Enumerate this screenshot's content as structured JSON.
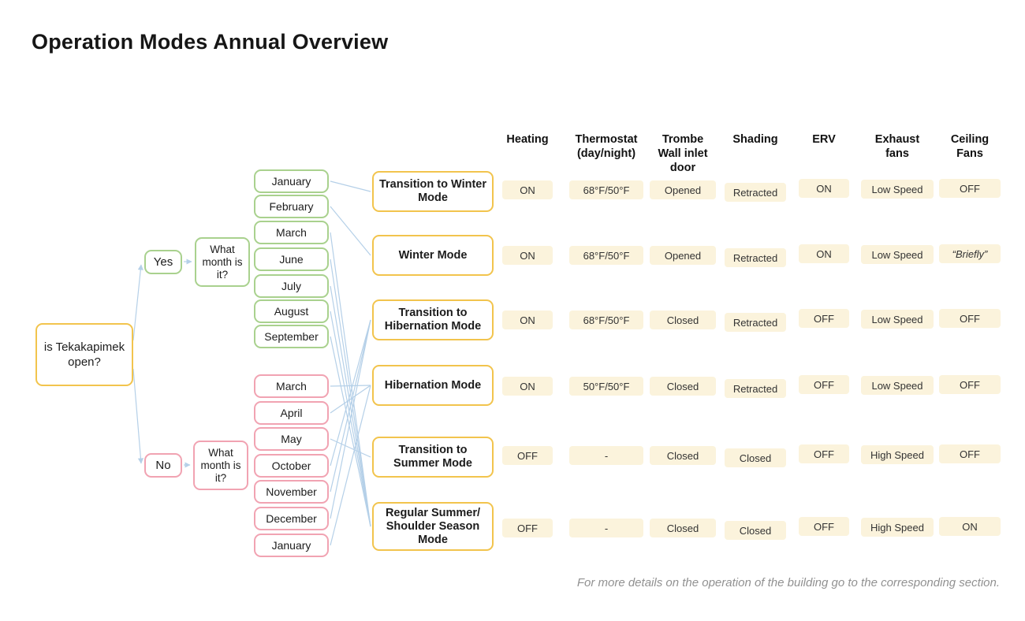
{
  "title": "Operation Modes Annual Overview",
  "footer_note": "For more details on the operation of the building go to the corresponding section.",
  "colors": {
    "mode_border": "#f2c44d",
    "open_border": "#a9d18e",
    "closed_border": "#f1a3b2",
    "cell_background": "#fbf3dc",
    "connector_blue": "#b5d0e8",
    "note_gray": "#919191"
  },
  "decision_tree": {
    "root_question": "is Tekakapimek open?",
    "yes_label": "Yes",
    "no_label": "No",
    "yes_question": "What month is it?",
    "no_question": "What month is it?",
    "yes_months": [
      "January",
      "February",
      "March",
      "June",
      "July",
      "August",
      "September"
    ],
    "no_months": [
      "March",
      "April",
      "May",
      "October",
      "November",
      "December",
      "January"
    ]
  },
  "modes": [
    {
      "id": "transition-winter",
      "label": "Transition to Winter Mode"
    },
    {
      "id": "winter",
      "label": "Winter Mode"
    },
    {
      "id": "transition-hibernation",
      "label": "Transition to Hibernation Mode"
    },
    {
      "id": "hibernation",
      "label": "Hibernation Mode"
    },
    {
      "id": "transition-summer",
      "label": "Transition to Summer Mode"
    },
    {
      "id": "regular-summer",
      "label": "Regular Summer/ Shoulder Season Mode"
    }
  ],
  "connections": [
    {
      "branch": "yes",
      "month": "January",
      "mode": "transition-winter"
    },
    {
      "branch": "yes",
      "month": "February",
      "mode": "winter"
    },
    {
      "branch": "yes",
      "month": "March",
      "mode": "regular-summer"
    },
    {
      "branch": "yes",
      "month": "June",
      "mode": "regular-summer"
    },
    {
      "branch": "yes",
      "month": "July",
      "mode": "regular-summer"
    },
    {
      "branch": "yes",
      "month": "August",
      "mode": "regular-summer"
    },
    {
      "branch": "yes",
      "month": "September",
      "mode": "regular-summer"
    },
    {
      "branch": "no",
      "month": "March",
      "mode": "hibernation"
    },
    {
      "branch": "no",
      "month": "April",
      "mode": "hibernation"
    },
    {
      "branch": "no",
      "month": "May",
      "mode": "transition-summer"
    },
    {
      "branch": "no",
      "month": "October",
      "mode": "transition-hibernation"
    },
    {
      "branch": "no",
      "month": "November",
      "mode": "transition-hibernation"
    },
    {
      "branch": "no",
      "month": "December",
      "mode": "transition-hibernation"
    },
    {
      "branch": "no",
      "month": "January",
      "mode": "hibernation"
    }
  ],
  "table": {
    "columns": [
      "Heating",
      "Thermostat (day/night)",
      "Trombe Wall inlet door",
      "Shading",
      "ERV",
      "Exhaust fans",
      "Ceiling Fans"
    ],
    "rows": [
      {
        "mode": "Transition to Winter Mode",
        "values": [
          "ON",
          "68°F/50°F",
          "Opened",
          "Retracted",
          "ON",
          "Low Speed",
          "OFF"
        ]
      },
      {
        "mode": "Winter Mode",
        "values": [
          "ON",
          "68°F/50°F",
          "Opened",
          "Retracted",
          "ON",
          "Low Speed",
          "“Briefly”"
        ]
      },
      {
        "mode": "Transition to Hibernation Mode",
        "values": [
          "ON",
          "68°F/50°F",
          "Closed",
          "Retracted",
          "OFF",
          "Low Speed",
          "OFF"
        ]
      },
      {
        "mode": "Hibernation Mode",
        "values": [
          "ON",
          "50°F/50°F",
          "Closed",
          "Retracted",
          "OFF",
          "Low Speed",
          "OFF"
        ]
      },
      {
        "mode": "Transition to Summer Mode",
        "values": [
          "OFF",
          "-",
          "Closed",
          "Closed",
          "OFF",
          "High Speed",
          "OFF"
        ]
      },
      {
        "mode": "Regular Summer/ Shoulder Season Mode",
        "values": [
          "OFF",
          "-",
          "Closed",
          "Closed",
          "OFF",
          "High Speed",
          "ON"
        ]
      }
    ]
  }
}
